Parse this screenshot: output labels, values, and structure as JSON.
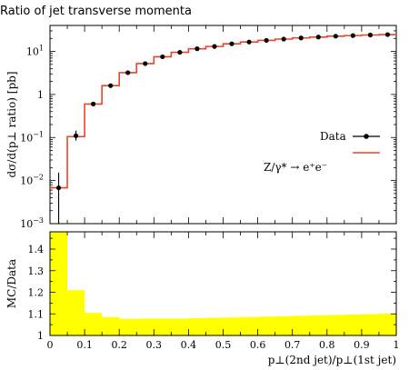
{
  "chart_data": [
    {
      "type": "line",
      "title": "Ratio of jet transverse momenta",
      "ylabel": "dσ/d(p⊥ ratio) [pb]",
      "yscale": "log",
      "ylim": [
        0.001,
        40
      ],
      "xlim": [
        0,
        1
      ],
      "ytick_labels": [
        {
          "value": 0.001,
          "base": "10",
          "exp": "−3"
        },
        {
          "value": 0.01,
          "base": "10",
          "exp": "−2"
        },
        {
          "value": 0.1,
          "base": "10",
          "exp": "−1"
        },
        {
          "value": 1,
          "base": "1",
          "exp": ""
        },
        {
          "value": 10,
          "base": "10",
          "exp": "1"
        }
      ],
      "legend": [
        {
          "label": "Data",
          "color": "#000000",
          "marker": "dot-with-errorbar"
        },
        {
          "label": "Z/γ* → e⁺e⁻",
          "color": "#e8452c",
          "marker": "line"
        }
      ],
      "series": [
        {
          "name": "Data",
          "color": "#000000",
          "x": [
            0.025,
            0.075,
            0.125,
            0.175,
            0.225,
            0.275,
            0.325,
            0.375,
            0.425,
            0.475,
            0.525,
            0.575,
            0.625,
            0.675,
            0.725,
            0.775,
            0.825,
            0.875,
            0.925,
            0.975
          ],
          "y": [
            0.0068,
            0.11,
            0.6,
            1.6,
            3.2,
            5.2,
            7.5,
            9.5,
            11.5,
            13.0,
            15.0,
            16.5,
            18.0,
            19.3,
            20.5,
            21.5,
            22.5,
            23.3,
            24.0,
            24.5
          ],
          "yerr_low": [
            0.0058,
            0.025,
            0.03,
            0.05,
            0.08,
            0.1,
            0.12,
            0.14,
            0.15,
            0.16,
            0.18,
            0.19,
            0.2,
            0.21,
            0.22,
            0.23,
            0.24,
            0.25,
            0.26,
            0.27
          ],
          "yerr_high": [
            0.0085,
            0.035,
            0.03,
            0.05,
            0.08,
            0.1,
            0.12,
            0.14,
            0.15,
            0.16,
            0.18,
            0.19,
            0.2,
            0.21,
            0.22,
            0.23,
            0.24,
            0.25,
            0.26,
            0.27
          ]
        },
        {
          "name": "Z/γ* → e⁺e⁻",
          "color": "#e8452c",
          "bin_edges": [
            0,
            0.05,
            0.1,
            0.15,
            0.2,
            0.25,
            0.3,
            0.35,
            0.4,
            0.45,
            0.5,
            0.55,
            0.6,
            0.65,
            0.7,
            0.75,
            0.8,
            0.85,
            0.9,
            0.95,
            1.0
          ],
          "values": [
            0.0068,
            0.105,
            0.6,
            1.6,
            3.2,
            5.2,
            7.5,
            9.5,
            11.5,
            13.0,
            15.0,
            16.5,
            18.0,
            19.3,
            20.5,
            21.5,
            22.5,
            23.3,
            24.0,
            24.5
          ]
        }
      ]
    },
    {
      "type": "area",
      "ylabel": "MC/Data",
      "xlabel": "p⊥(2nd jet)/p⊥(1st jet)",
      "xlim": [
        0,
        1
      ],
      "ylim": [
        1.0,
        1.48
      ],
      "x_ticks": [
        0,
        0.1,
        0.2,
        0.3,
        0.4,
        0.5,
        0.6,
        0.7,
        0.8,
        0.9,
        1
      ],
      "x_tick_labels": [
        "0",
        "0.1",
        "0.2",
        "0.3",
        "0.4",
        "0.5",
        "0.6",
        "0.7",
        "0.8",
        "0.9",
        "1"
      ],
      "y_ticks": [
        1,
        1.1,
        1.2,
        1.3,
        1.4
      ],
      "y_tick_labels": [
        "1",
        "1.1",
        "1.2",
        "1.3",
        "1.4"
      ],
      "band_color": "#ffff00",
      "band": {
        "bin_edges": [
          0,
          0.05,
          0.1,
          0.15,
          0.2,
          0.25,
          0.3,
          0.35,
          0.4,
          0.45,
          0.5,
          0.55,
          0.6,
          0.65,
          0.7,
          0.75,
          0.8,
          0.85,
          0.9,
          0.95,
          1.0
        ],
        "upper": [
          1.48,
          1.21,
          1.105,
          1.085,
          1.077,
          1.078,
          1.078,
          1.078,
          1.08,
          1.082,
          1.083,
          1.085,
          1.087,
          1.089,
          1.091,
          1.093,
          1.095,
          1.097,
          1.099,
          1.101
        ]
      }
    }
  ]
}
